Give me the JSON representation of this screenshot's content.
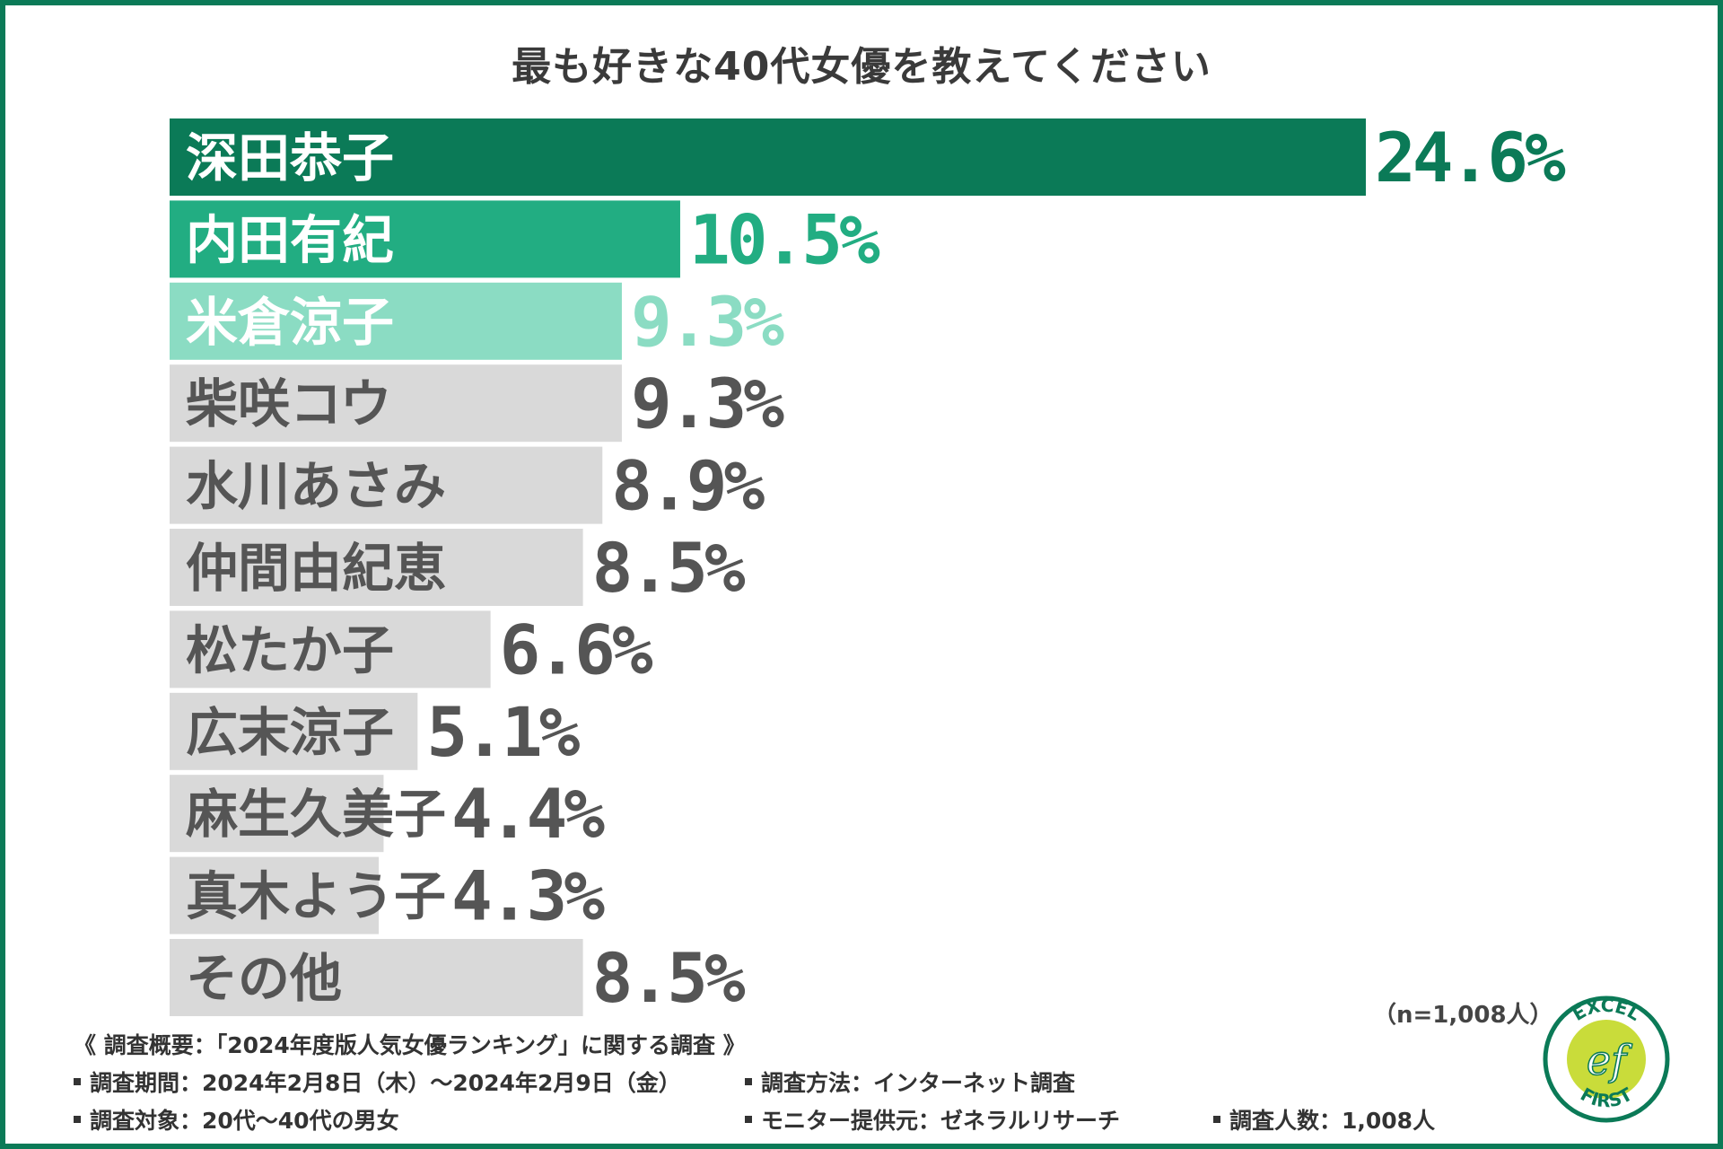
{
  "chart_data": {
    "type": "bar",
    "orientation": "horizontal",
    "title": "最も好きな40代女優を教えてください",
    "categories": [
      "深田恭子",
      "内田有紀",
      "米倉涼子",
      "柴咲コウ",
      "水川あさみ",
      "仲間由紀恵",
      "松たか子",
      "広末涼子",
      "麻生久美子",
      "真木よう子",
      "その他"
    ],
    "values": [
      24.6,
      10.5,
      9.3,
      9.3,
      8.9,
      8.5,
      6.6,
      5.1,
      4.4,
      4.3,
      8.5
    ],
    "value_labels": [
      "24.6%",
      "10.5%",
      "9.3%",
      "9.3%",
      "8.9%",
      "8.5%",
      "6.6%",
      "5.1%",
      "4.4%",
      "4.3%",
      "8.5%"
    ],
    "unit": "%",
    "bar_colors": [
      "#0b7a57",
      "#22ad82",
      "#8bdcc3",
      "#d9d9d9",
      "#d9d9d9",
      "#d9d9d9",
      "#d9d9d9",
      "#d9d9d9",
      "#d9d9d9",
      "#d9d9d9",
      "#d9d9d9"
    ],
    "value_colors": [
      "#0b7a57",
      "#22ad82",
      "#8bdcc3",
      "#555555",
      "#555555",
      "#555555",
      "#555555",
      "#555555",
      "#555555",
      "#555555",
      "#555555"
    ],
    "label_colors": [
      "#ffffff",
      "#ffffff",
      "#ffffff",
      "#555555",
      "#555555",
      "#555555",
      "#555555",
      "#555555",
      "#555555",
      "#555555",
      "#555555"
    ],
    "xlim": [
      0,
      24.6
    ],
    "grid": false,
    "legend": "none"
  },
  "sample_size": "（n=1,008人）",
  "footer": {
    "summary": "《 調査概要：「2024年度版人気女優ランキング」に関する調査 》",
    "period": "調査期間：2024年2月8日（木）〜2024年2月9日（金）",
    "method": "調査方法：インターネット調査",
    "target": "調査対象：20代〜40代の男女",
    "provider": "モニター提供元：ゼネラルリサーチ",
    "count": "調査人数：1,008人"
  },
  "logo": {
    "text_top": "EXCEL",
    "text_bottom": "FIRST",
    "monogram": "ef",
    "ring_color": "#0b7a57",
    "fill_color": "#c9dc3a"
  }
}
